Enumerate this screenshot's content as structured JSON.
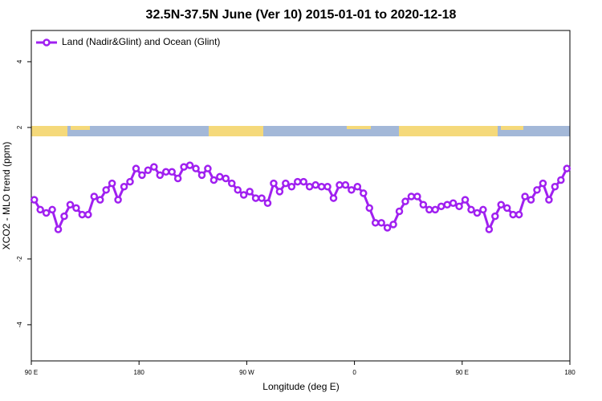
{
  "chart_data": {
    "type": "line",
    "title": "32.5N-37.5N June (Ver 10)   2015-01-01 to 2020-12-18",
    "x_label": "Longitude (deg E)",
    "y_label": "XCO2 - MLO trend (ppm)",
    "x": [
      92.5,
      97.5,
      102.5,
      107.5,
      112.5,
      117.5,
      122.5,
      127.5,
      132.5,
      137.5,
      142.5,
      147.5,
      152.5,
      157.5,
      162.5,
      167.5,
      172.5,
      177.5,
      182.5,
      187.5,
      192.5,
      197.5,
      202.5,
      207.5,
      212.5,
      217.5,
      222.5,
      227.5,
      232.5,
      237.5,
      242.5,
      247.5,
      252.5,
      257.5,
      262.5,
      267.5,
      272.5,
      277.5,
      282.5,
      287.5,
      292.5,
      297.5,
      302.5,
      307.5,
      312.5,
      317.5,
      322.5,
      327.5,
      332.5,
      337.5,
      342.5,
      347.5,
      352.5,
      357.5,
      362.5,
      367.5,
      372.5,
      377.5,
      382.5,
      387.5,
      392.5,
      397.5,
      402.5,
      407.5,
      412.5,
      417.5,
      422.5,
      427.5,
      432.5,
      437.5,
      442.5,
      447.5,
      452.5,
      457.5,
      462.5,
      467.5,
      472.5,
      477.5,
      482.5,
      487.5,
      492.5,
      497.5,
      502.5,
      507.5,
      512.5,
      517.5,
      522.5,
      527.5,
      532.5,
      537.5
    ],
    "series": [
      {
        "name": "Land (Nadir&Glint) and Ocean (Glint)",
        "color": "#a020f0",
        "values": [
          -0.2,
          -0.5,
          -0.6,
          -0.5,
          -1.1,
          -0.7,
          -0.35,
          -0.45,
          -0.65,
          -0.65,
          -0.1,
          -0.2,
          0.1,
          0.3,
          -0.2,
          0.2,
          0.35,
          0.75,
          0.55,
          0.7,
          0.8,
          0.55,
          0.65,
          0.65,
          0.45,
          0.8,
          0.85,
          0.75,
          0.55,
          0.75,
          0.4,
          0.5,
          0.45,
          0.3,
          0.1,
          -0.05,
          0.05,
          -0.15,
          -0.15,
          -0.3,
          0.3,
          0.05,
          0.3,
          0.2,
          0.35,
          0.35,
          0.2,
          0.25,
          0.2,
          0.2,
          -0.15,
          0.25,
          0.25,
          0.1,
          0.2,
          0,
          -0.45,
          -0.9,
          -0.9,
          -1.05,
          -0.95,
          -0.55,
          -0.25,
          -0.1,
          -0.1,
          -0.35,
          -0.5,
          -0.5,
          -0.4,
          -0.35,
          -0.3,
          -0.4,
          -0.2,
          -0.5,
          -0.6,
          -0.5,
          -1.1,
          -0.7,
          -0.35,
          -0.45,
          -0.65,
          -0.65,
          -0.1,
          -0.2,
          0.1,
          0.3,
          -0.2,
          0.2,
          0.4,
          0.75
        ]
      }
    ],
    "xlim": [
      90,
      540
    ],
    "xticks": [
      {
        "value": 90,
        "label": "90 E"
      },
      180,
      {
        "value": 270,
        "label": "90 W"
      },
      {
        "value": 360,
        "label": "0"
      },
      {
        "value": 450,
        "label": "90 E"
      },
      180
    ],
    "ylim": [
      -5.1,
      4.95
    ],
    "yticks": [
      -4,
      -2,
      2,
      4
    ],
    "legend": "top-left"
  }
}
